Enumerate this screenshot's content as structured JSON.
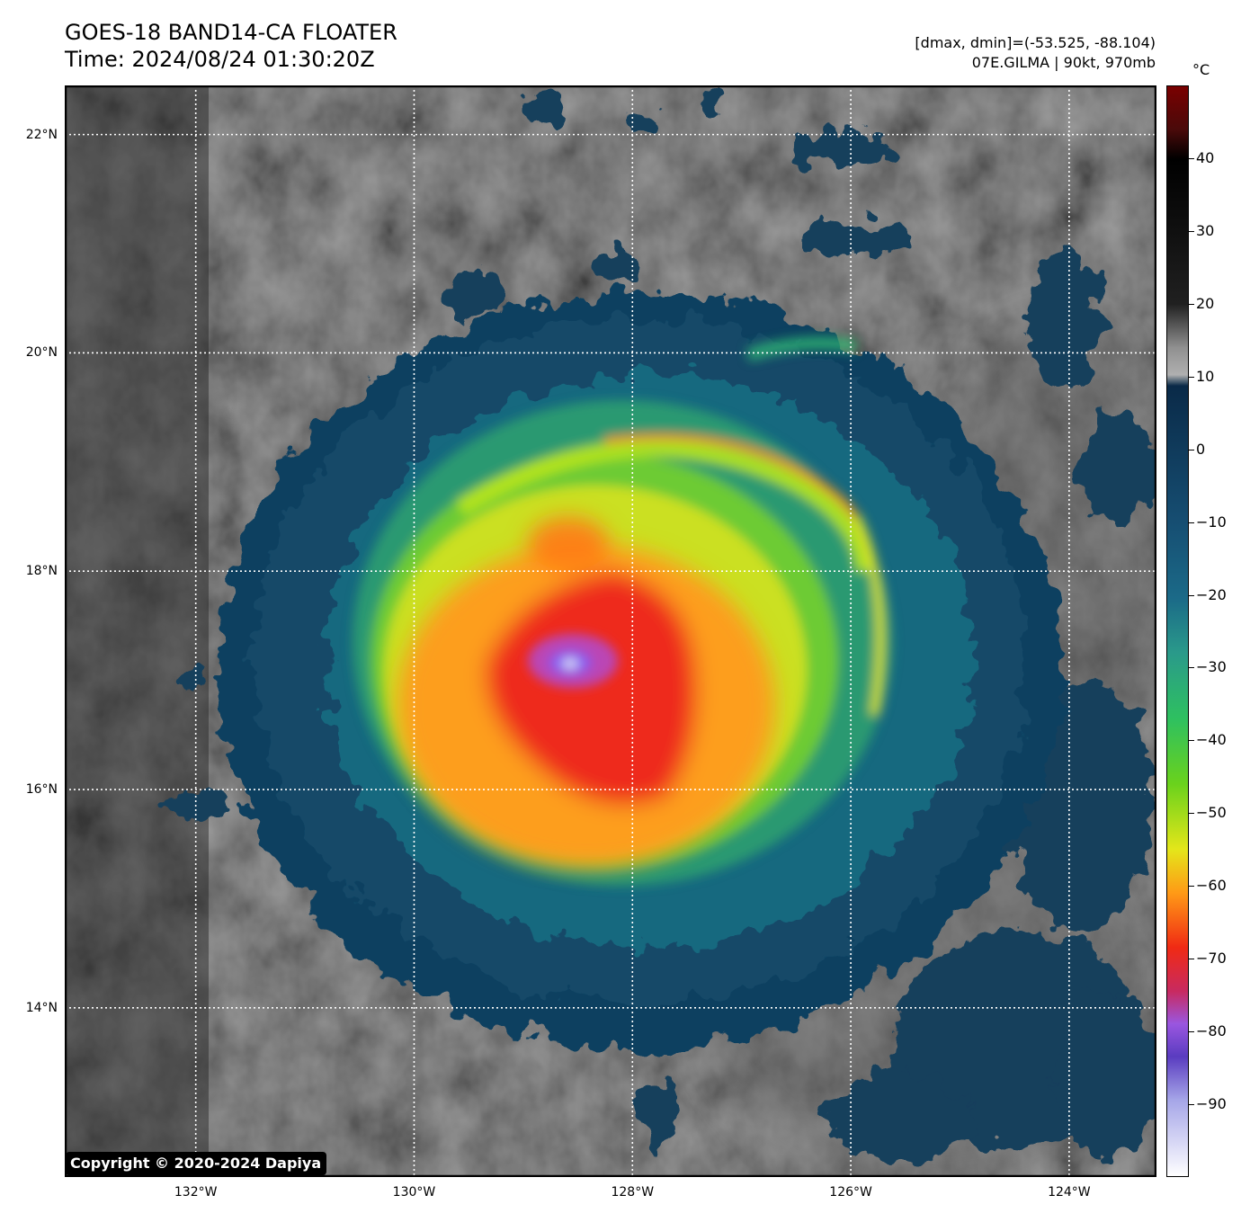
{
  "header": {
    "title_line1": "GOES-18 BAND14-CA FLOATER",
    "title_line2": "Time: 2024/08/24 01:30:20Z",
    "meta_line1": "[dmax, dmin]=(-53.525, -88.104)",
    "meta_line2": "07E.GILMA | 90kt, 970mb"
  },
  "colorbar": {
    "unit": "°C",
    "vmin": -100,
    "vmax": 50,
    "ticks": [
      {
        "value": 40,
        "label": "40"
      },
      {
        "value": 30,
        "label": "30"
      },
      {
        "value": 20,
        "label": "20"
      },
      {
        "value": 10,
        "label": "10"
      },
      {
        "value": 0,
        "label": "0"
      },
      {
        "value": -10,
        "label": "−10"
      },
      {
        "value": -20,
        "label": "−20"
      },
      {
        "value": -30,
        "label": "−30"
      },
      {
        "value": -40,
        "label": "−40"
      },
      {
        "value": -50,
        "label": "−50"
      },
      {
        "value": -60,
        "label": "−60"
      },
      {
        "value": -70,
        "label": "−70"
      },
      {
        "value": -80,
        "label": "−80"
      },
      {
        "value": -90,
        "label": "−90"
      }
    ]
  },
  "map": {
    "lon_range": [
      -133.2,
      -123.2
    ],
    "lat_range": [
      12.45,
      22.45
    ],
    "lat_lines": [
      {
        "value": 22,
        "label": "22°N"
      },
      {
        "value": 20,
        "label": "20°N"
      },
      {
        "value": 18,
        "label": "18°N"
      },
      {
        "value": 16,
        "label": "16°N"
      },
      {
        "value": 14,
        "label": "14°N"
      }
    ],
    "lon_lines": [
      {
        "value": -132,
        "label": "132°W"
      },
      {
        "value": -130,
        "label": "130°W"
      },
      {
        "value": -128,
        "label": "128°W"
      },
      {
        "value": -126,
        "label": "126°W"
      },
      {
        "value": -124,
        "label": "124°W"
      }
    ],
    "storm_center": {
      "lon": -128.6,
      "lat": 17.2
    }
  },
  "copyright": "Copyright © 2020-2024 Dapiya"
}
